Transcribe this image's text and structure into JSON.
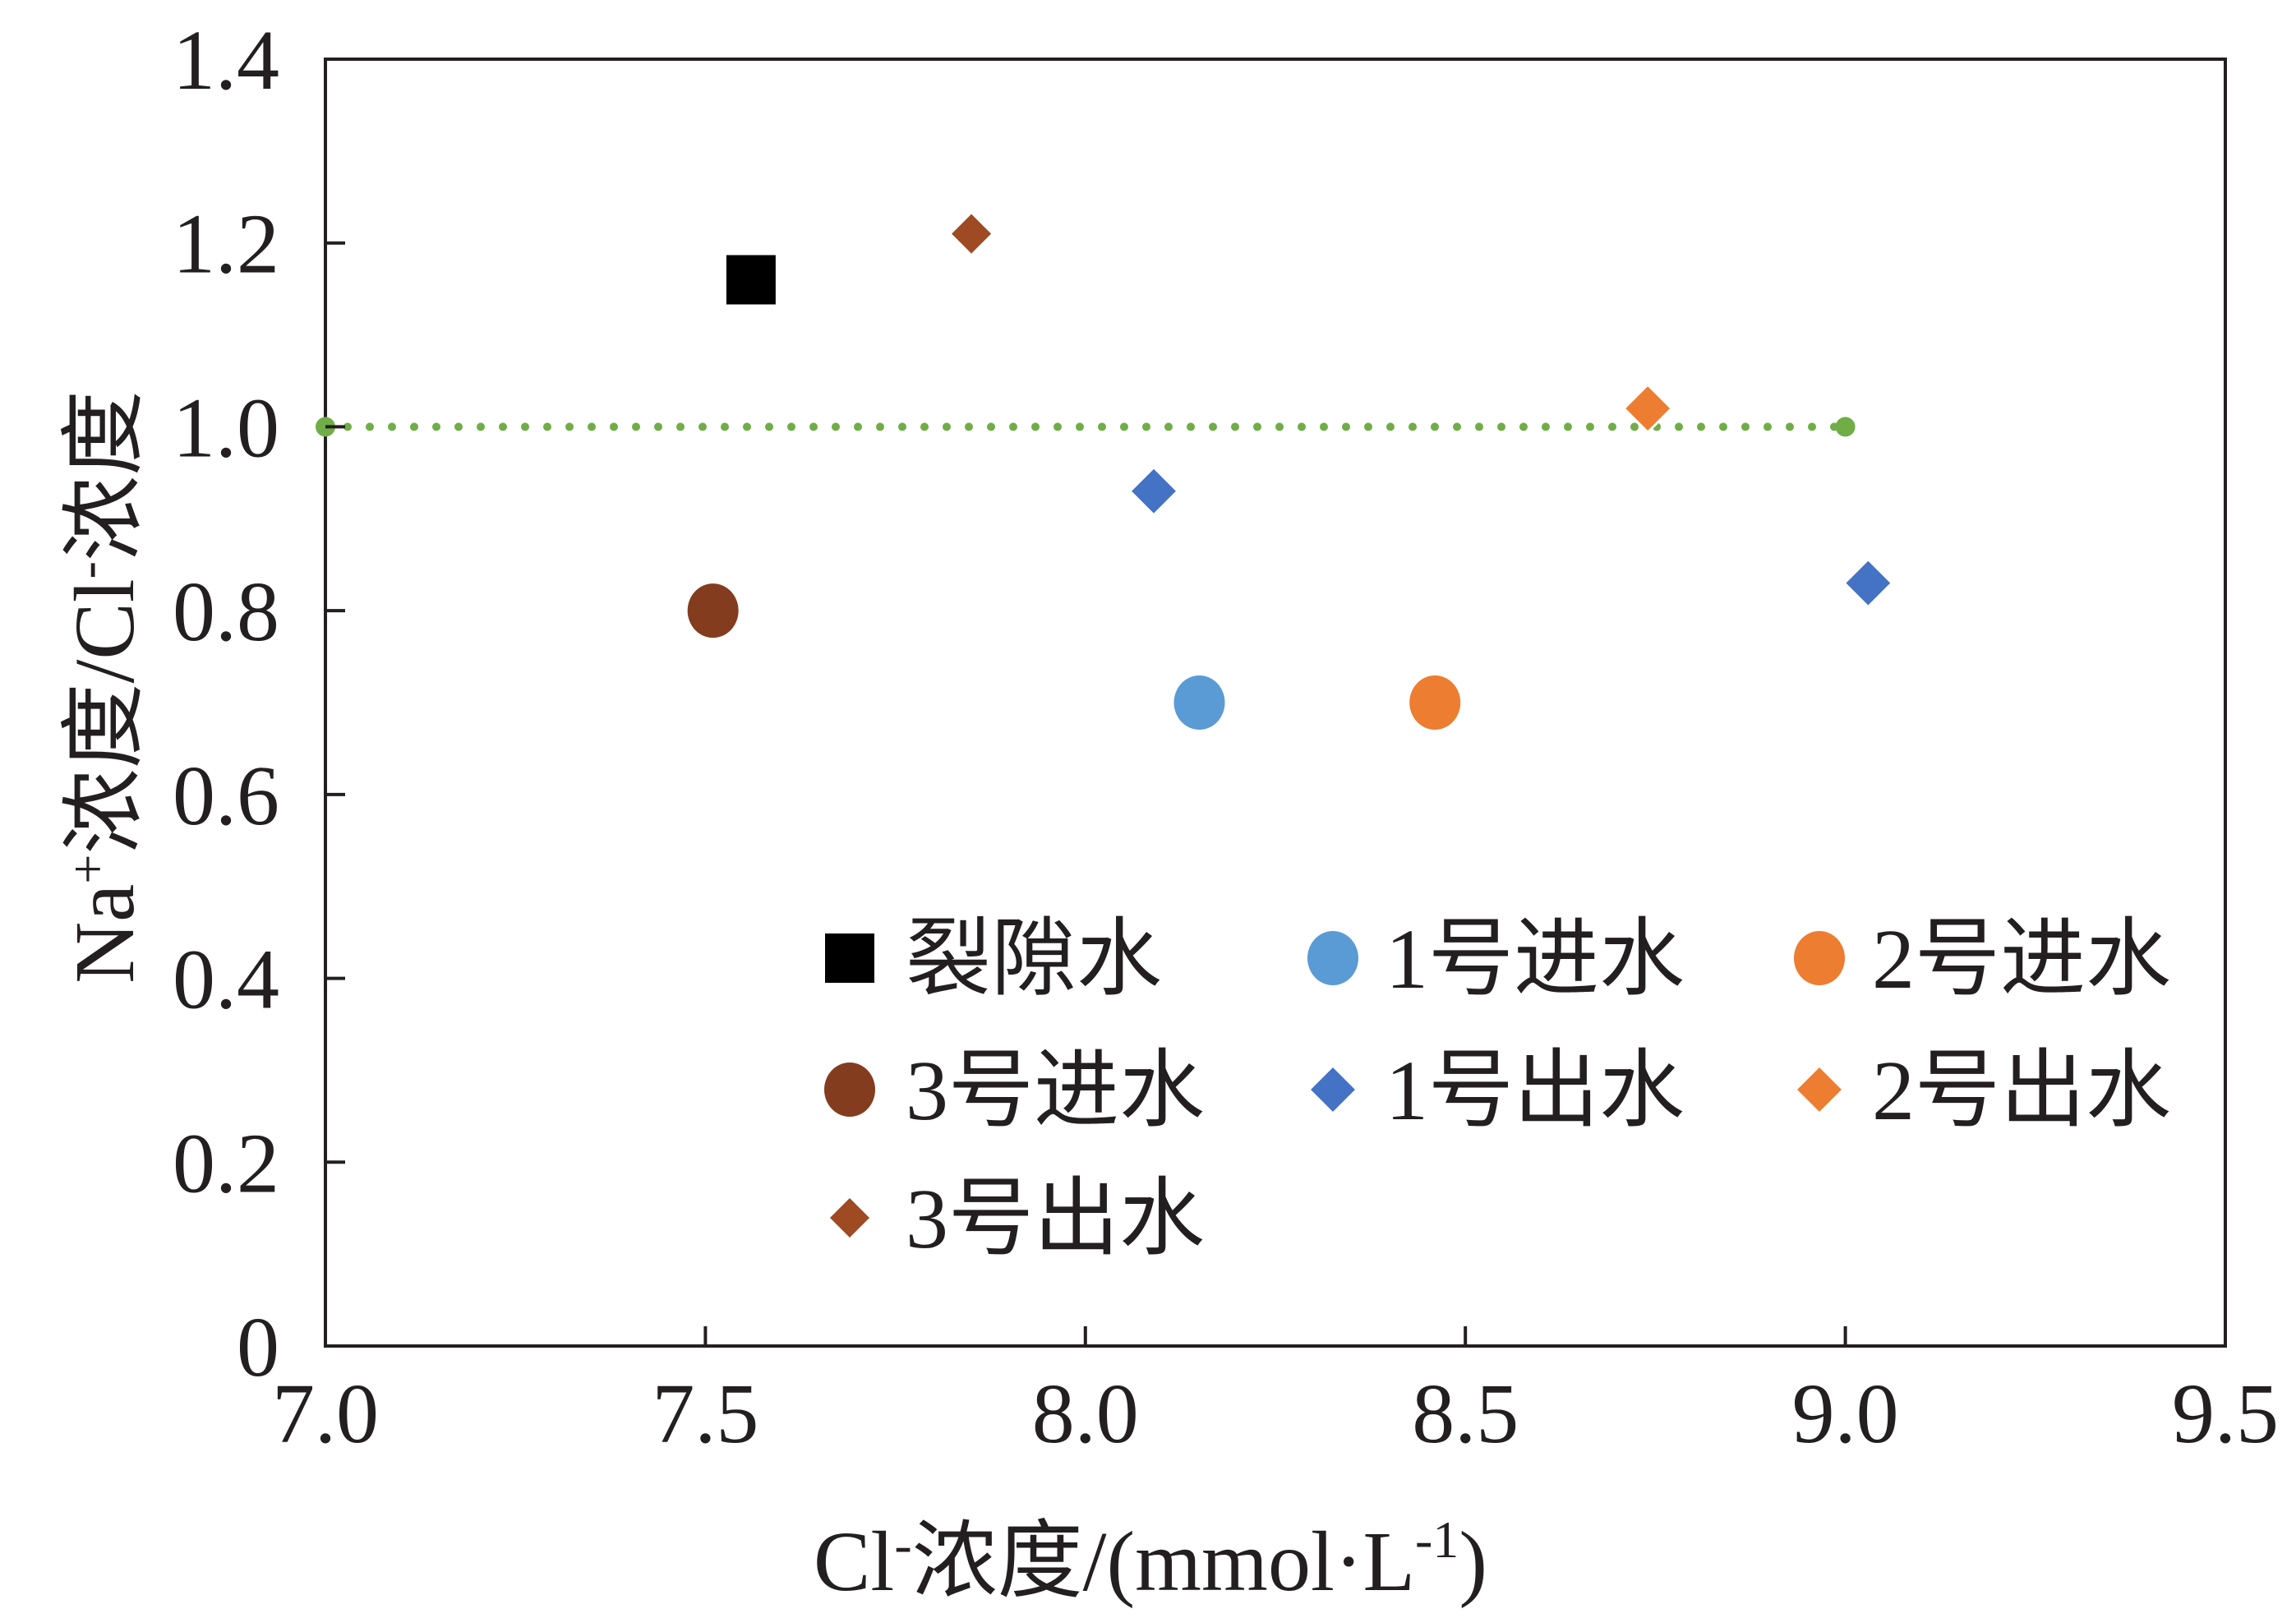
{
  "chart_data": {
    "type": "scatter",
    "xlabel": {
      "base": "Cl",
      "base_sup": "-",
      "rest": "浓度/(mmol·L",
      "rest_sup": "-1",
      "close": ")"
    },
    "ylabel": {
      "base": "Na",
      "base_sup": "+",
      "mid": "浓度/Cl",
      "mid_sup": "-",
      "rest": "浓度"
    },
    "xlim": [
      7.0,
      9.5
    ],
    "ylim": [
      0,
      1.4
    ],
    "x_ticks": [
      "7.0",
      "7.5",
      "8.0",
      "8.5",
      "9.0",
      "9.5"
    ],
    "y_ticks": [
      "0",
      "0.2",
      "0.4",
      "0.6",
      "0.8",
      "1.0",
      "1.2",
      "1.4"
    ],
    "grid": false,
    "legend_position": "bottom-right",
    "series": [
      {
        "name": "裂隙水",
        "marker": "square",
        "color": "#000000",
        "x": [
          7.56
        ],
        "y": [
          1.16
        ]
      },
      {
        "name": "1号进水",
        "marker": "circle",
        "color": "#5b9bd5",
        "x": [
          8.15
        ],
        "y": [
          0.7
        ]
      },
      {
        "name": "2号进水",
        "marker": "circle",
        "color": "#ed7d31",
        "x": [
          8.46
        ],
        "y": [
          0.7
        ]
      },
      {
        "name": "3号进水",
        "marker": "circle",
        "color": "#843c1f",
        "x": [
          7.51
        ],
        "y": [
          0.8
        ]
      },
      {
        "name": "1号出水",
        "marker": "diamond",
        "color": "#4472c4",
        "x": [
          8.09,
          9.03
        ],
        "y": [
          0.93,
          0.83
        ]
      },
      {
        "name": "2号出水",
        "marker": "diamond",
        "color": "#ed7d31",
        "x": [
          8.74
        ],
        "y": [
          1.02
        ]
      },
      {
        "name": "3号出水",
        "marker": "diamond-small",
        "color": "#9e4a22",
        "x": [
          7.85
        ],
        "y": [
          1.21
        ]
      }
    ],
    "reference_line": {
      "x": [
        7.0,
        9.0
      ],
      "y": [
        1.0,
        1.0
      ],
      "style": "dotted",
      "color": "#70ad47"
    }
  }
}
